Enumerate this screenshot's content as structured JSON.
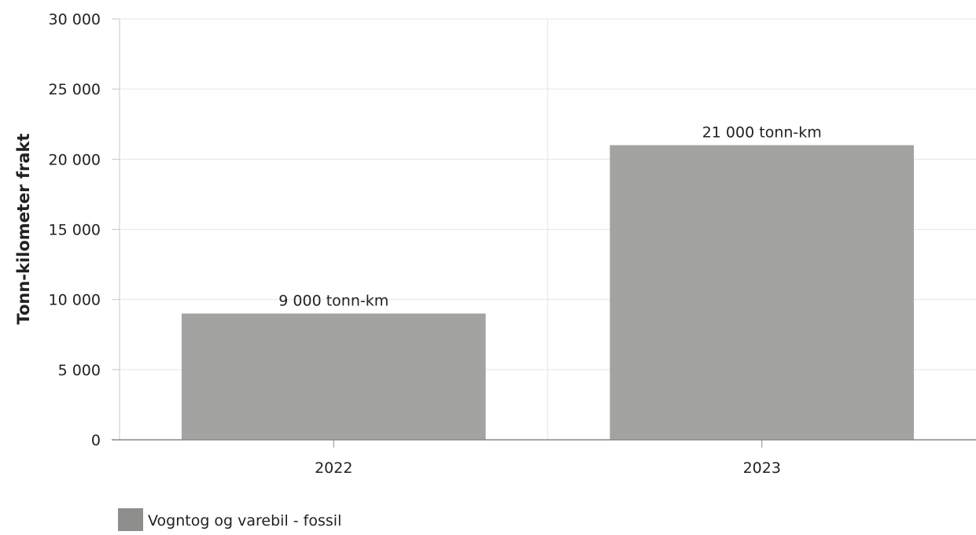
{
  "chart_data": {
    "type": "bar",
    "title": "",
    "xlabel": "",
    "ylabel": "Tonn-kilometer frakt",
    "categories": [
      "2022",
      "2023"
    ],
    "series": [
      {
        "name": "Vogntog og varebil - fossil",
        "values": [
          9000,
          21000
        ],
        "data_labels": [
          "9 000 tonn-km",
          "21 000 tonn-km"
        ],
        "color": "#a3a3a1"
      }
    ],
    "ylim": [
      0,
      30000
    ],
    "yticks": [
      0,
      5000,
      10000,
      15000,
      20000,
      25000,
      30000
    ],
    "ytick_labels": [
      "0",
      "5 000",
      "10 000",
      "15 000",
      "20 000",
      "25 000",
      "30 000"
    ],
    "grid": true,
    "legend": "bottom-left",
    "legend_swatch_color": "#8e8e8c"
  }
}
